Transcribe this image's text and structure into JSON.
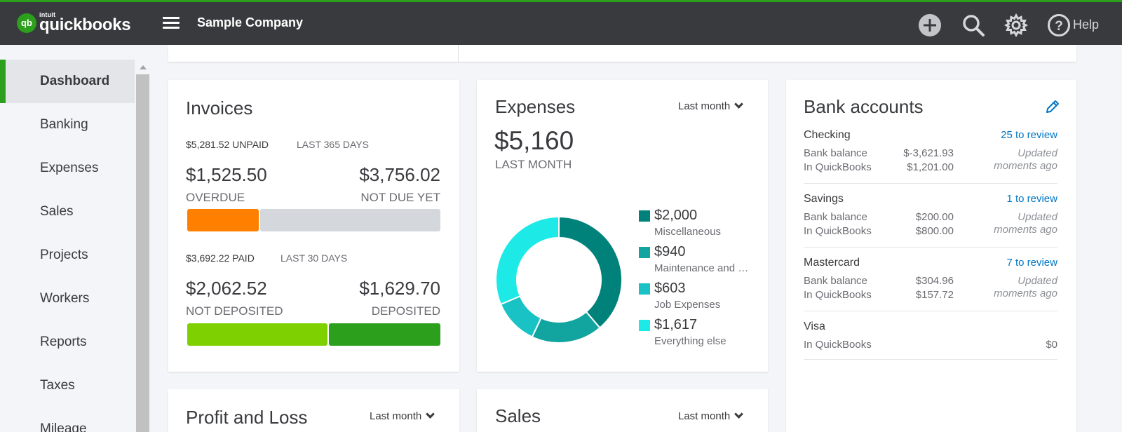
{
  "app": {
    "logo_small": "intuit",
    "logo_main": "quickbooks",
    "logo_badge": "qb",
    "company": "Sample Company",
    "help_label": "Help",
    "icons": [
      "hamburger-menu-icon",
      "plus-circle-icon",
      "search-icon",
      "gear-icon",
      "help-circle-icon"
    ],
    "brand_color": "#2ca01c"
  },
  "sidebar": {
    "items": [
      {
        "label": "Dashboard",
        "active": true
      },
      {
        "label": "Banking"
      },
      {
        "label": "Expenses"
      },
      {
        "label": "Sales"
      },
      {
        "label": "Projects"
      },
      {
        "label": "Workers"
      },
      {
        "label": "Reports"
      },
      {
        "label": "Taxes"
      },
      {
        "label": "Mileage"
      }
    ]
  },
  "invoices": {
    "title": "Invoices",
    "unpaid_amount": "$5,281.52 UNPAID",
    "unpaid_period": "LAST 365 DAYS",
    "overdue_amount": "$1,525.50",
    "overdue_label": "OVERDUE",
    "not_due_amount": "$3,756.02",
    "not_due_label": "NOT DUE YET",
    "paid_amount": "$3,692.22 PAID",
    "paid_period": "LAST 30 DAYS",
    "not_deposited_amount": "$2,062.52",
    "not_deposited_label": "NOT DEPOSITED",
    "deposited_amount": "$1,629.70",
    "deposited_label": "DEPOSITED",
    "colors": {
      "overdue": "#ff8000",
      "not_due": "#d4d7dc",
      "not_deposited": "#7fd000",
      "deposited": "#2ca01c"
    }
  },
  "expenses": {
    "title": "Expenses",
    "period_dropdown": "Last month",
    "total": "$5,160",
    "total_label": "LAST MONTH",
    "legend": [
      {
        "amount": "$2,000",
        "label": "Miscellaneous",
        "value": 2000,
        "color": "#00827b"
      },
      {
        "amount": "$940",
        "label": "Maintenance and …",
        "value": 940,
        "color": "#12a5a0"
      },
      {
        "amount": "$603",
        "label": "Job Expenses",
        "value": 603,
        "color": "#18c2c5"
      },
      {
        "amount": "$1,617",
        "label": "Everything else",
        "value": 1617,
        "color": "#1de9e6"
      }
    ]
  },
  "bank": {
    "title": "Bank accounts",
    "edit_icon": "pencil-icon",
    "accounts": [
      {
        "name": "Checking",
        "review": "25 to review",
        "bank_label": "Bank balance",
        "bank_value": "$-3,621.93",
        "qb_label": "In QuickBooks",
        "qb_value": "$1,201.00",
        "updated_1": "Updated",
        "updated_2": "moments ago"
      },
      {
        "name": "Savings",
        "review": "1 to review",
        "bank_label": "Bank balance",
        "bank_value": "$200.00",
        "qb_label": "In QuickBooks",
        "qb_value": "$800.00",
        "updated_1": "Updated",
        "updated_2": "moments ago"
      },
      {
        "name": "Mastercard",
        "review": "7 to review",
        "bank_label": "Bank balance",
        "bank_value": "$304.96",
        "qb_label": "In QuickBooks",
        "qb_value": "$157.72",
        "updated_1": "Updated",
        "updated_2": "moments ago"
      },
      {
        "name": "Visa",
        "qb_label": "In QuickBooks",
        "qb_value": "$0"
      }
    ]
  },
  "profit_loss": {
    "title": "Profit and Loss",
    "period_dropdown": "Last month"
  },
  "sales": {
    "title": "Sales",
    "period_dropdown": "Last month"
  }
}
